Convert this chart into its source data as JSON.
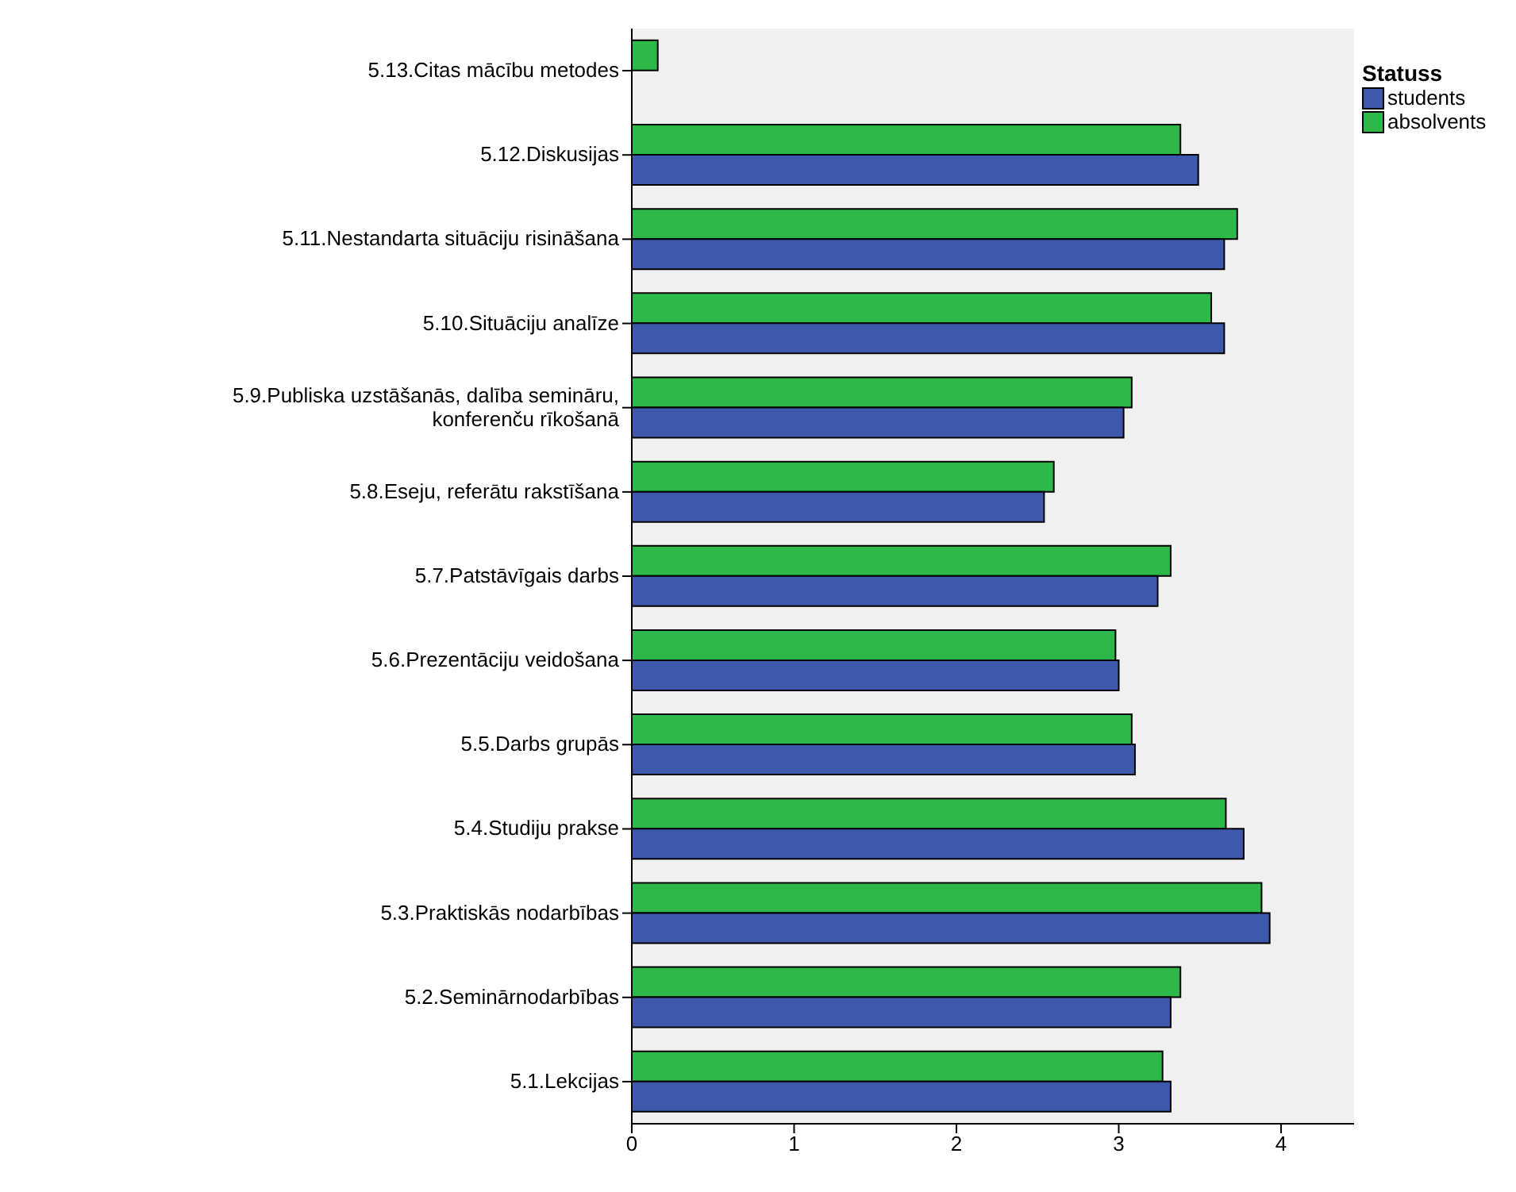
{
  "chart_data": {
    "type": "bar",
    "orientation": "horizontal",
    "legend_title": "Statuss",
    "legend": "top right",
    "categories": [
      "5.13.Citas mācību metodes",
      "5.12.Diskusijas",
      "5.11.Nestandarta situāciju risināšana",
      "5.10.Situāciju analīze",
      "5.9.Publiska uzstāšanās, dalība semināru, konferenču rīkošanā",
      "5.8.Eseju, referātu rakstīšana",
      "5.7.Patstāvīgais darbs",
      "5.6.Prezentāciju veidošana",
      "5.5.Darbs grupās",
      "5.4.Studiju prakse",
      "5.3.Praktiskās nodarbības",
      "5.2.Seminārnodarbības",
      "5.1.Lekcijas"
    ],
    "series": [
      {
        "name": "students",
        "color": "#3e58ac",
        "values": [
          null,
          3.49,
          3.65,
          3.65,
          3.03,
          2.54,
          3.24,
          3.0,
          3.1,
          3.77,
          3.93,
          3.32,
          3.32
        ]
      },
      {
        "name": "absolvents",
        "color": "#2eb84a",
        "values": [
          0.16,
          3.38,
          3.73,
          3.57,
          3.08,
          2.6,
          3.32,
          2.98,
          3.08,
          3.66,
          3.88,
          3.38,
          3.27
        ]
      }
    ],
    "xlim": [
      0,
      4.45
    ],
    "xticks": [
      0,
      1,
      2,
      3,
      4
    ]
  }
}
